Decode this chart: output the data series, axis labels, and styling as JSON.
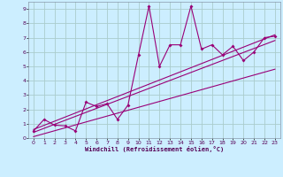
{
  "xlabel": "Windchill (Refroidissement éolien,°C)",
  "bg_color": "#cceeff",
  "grid_color": "#aacccc",
  "line_color": "#990077",
  "xlim": [
    -0.5,
    23.5
  ],
  "ylim": [
    0,
    9.5
  ],
  "xticks": [
    0,
    1,
    2,
    3,
    4,
    5,
    6,
    7,
    8,
    9,
    10,
    11,
    12,
    13,
    14,
    15,
    16,
    17,
    18,
    19,
    20,
    21,
    22,
    23
  ],
  "yticks": [
    0,
    1,
    2,
    3,
    4,
    5,
    6,
    7,
    8,
    9
  ],
  "scatter_x": [
    0,
    1,
    2,
    3,
    4,
    5,
    6,
    7,
    8,
    9,
    10,
    11,
    12,
    13,
    14,
    15,
    16,
    17,
    18,
    19,
    20,
    21,
    22,
    23
  ],
  "scatter_y": [
    0.5,
    1.3,
    0.9,
    0.85,
    0.5,
    2.5,
    2.2,
    2.4,
    1.3,
    2.3,
    5.8,
    9.2,
    5.0,
    6.5,
    6.5,
    9.2,
    6.2,
    6.5,
    5.8,
    6.4,
    5.4,
    6.0,
    7.0,
    7.1
  ],
  "line1_x": [
    0,
    23
  ],
  "line1_y": [
    0.1,
    4.8
  ],
  "line2_x": [
    0,
    23
  ],
  "line2_y": [
    0.4,
    6.8
  ],
  "line3_x": [
    0,
    23
  ],
  "line3_y": [
    0.6,
    7.2
  ]
}
